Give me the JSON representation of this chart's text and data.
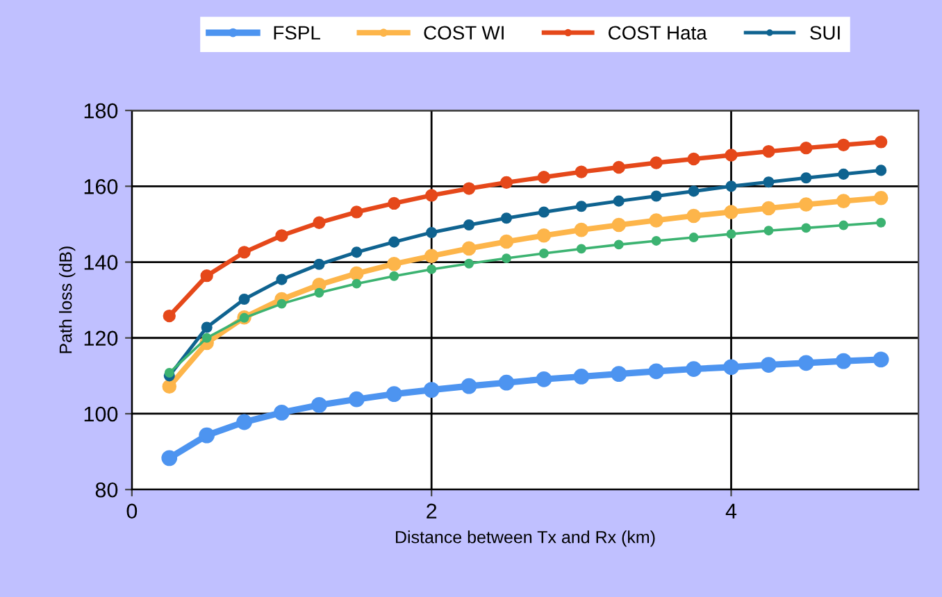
{
  "chart_data": {
    "type": "line",
    "xlabel": "Distance between Tx and Rx (km)",
    "ylabel": "Path loss (dB)",
    "x": [
      0.25,
      0.5,
      0.75,
      1,
      1.25,
      1.5,
      1.75,
      2,
      2.25,
      2.5,
      2.75,
      3,
      3.25,
      3.5,
      3.75,
      4,
      4.25,
      4.5,
      4.75,
      5
    ],
    "series": [
      {
        "name": "FSPL",
        "color": "#4d94f0",
        "values": [
          88.3,
          94.3,
          97.8,
          100.3,
          102.3,
          103.8,
          105.2,
          106.3,
          107.3,
          108.2,
          109.1,
          109.8,
          110.5,
          111.2,
          111.8,
          112.3,
          112.9,
          113.4,
          113.9,
          114.3
        ]
      },
      {
        "name": "COST WI",
        "color": "#fdb54a",
        "values": [
          107.2,
          118.7,
          125.4,
          130.2,
          134.0,
          137.0,
          139.5,
          141.6,
          143.6,
          145.4,
          147.0,
          148.5,
          149.8,
          151.0,
          152.2,
          153.2,
          154.2,
          155.2,
          156.1,
          156.9
        ]
      },
      {
        "name": "COST Hata",
        "color": "#e5481a",
        "values": [
          125.8,
          136.4,
          142.6,
          147.0,
          150.4,
          153.2,
          155.5,
          157.6,
          159.4,
          161.0,
          162.4,
          163.8,
          165.0,
          166.2,
          167.2,
          168.2,
          169.2,
          170.1,
          170.9,
          171.7
        ]
      },
      {
        "name": "SUI",
        "color": "#0f6390",
        "values": [
          110.0,
          122.8,
          130.2,
          135.4,
          139.4,
          142.6,
          145.3,
          147.8,
          149.8,
          151.6,
          153.2,
          154.7,
          156.1,
          157.4,
          158.7,
          160.0,
          161.1,
          162.2,
          163.2,
          164.2
        ]
      },
      {
        "color": "#3cb371",
        "values": [
          110.8,
          120.0,
          125.3,
          129.0,
          131.9,
          134.3,
          136.3,
          138.1,
          139.6,
          141.0,
          142.3,
          143.5,
          144.6,
          145.6,
          146.5,
          147.4,
          148.3,
          149.0,
          149.7,
          150.4
        ]
      }
    ],
    "xlim": [
      0,
      5.25
    ],
    "xticks": [
      0,
      2,
      4
    ],
    "ylim": [
      80,
      180
    ],
    "yticks": [
      80,
      100,
      120,
      140,
      160,
      180
    ],
    "grid": true,
    "legend": "top",
    "marker": "circle",
    "line_style": "solid"
  }
}
